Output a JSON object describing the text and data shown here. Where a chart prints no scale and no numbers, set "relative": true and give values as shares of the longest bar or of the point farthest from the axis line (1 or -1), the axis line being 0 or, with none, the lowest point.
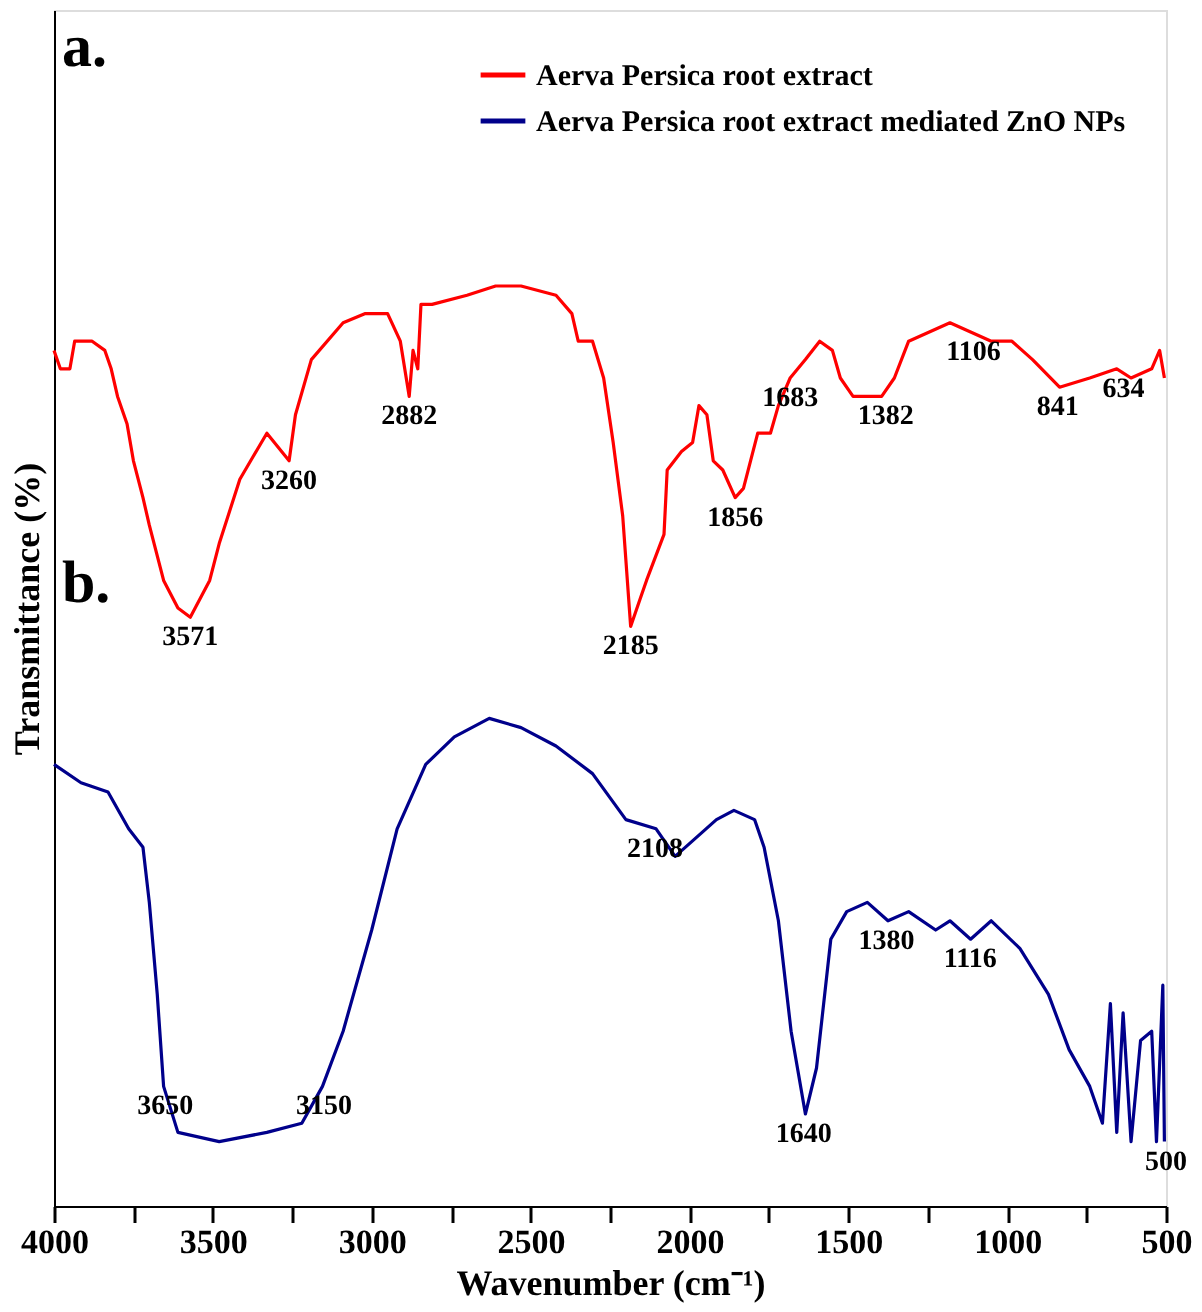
{
  "chart_data": {
    "type": "line",
    "relative": true,
    "xlabel": "Wavenumber (cm⁻¹)",
    "ylabel": "Transmittance (%)",
    "xlim": [
      4000,
      500
    ],
    "xticks": [
      4000,
      {
        "value": 3750,
        "label": null
      },
      3500,
      {
        "value": 3250,
        "label": null
      },
      3000,
      {
        "value": 2750,
        "label": null
      },
      2500,
      {
        "value": 2250,
        "label": null
      },
      2000,
      {
        "value": 1750,
        "label": null
      },
      1500,
      {
        "value": 1250,
        "label": null
      },
      1000,
      {
        "value": 750,
        "label": null
      },
      500
    ],
    "grid": false,
    "legend": "top right",
    "tick_labels": "x",
    "line_style": "solid",
    "marker": "none",
    "series": [
      {
        "name": "Aerva Persica root extract",
        "color": "#ff0000",
        "x": [
          4000,
          3980,
          3950,
          3935,
          3880,
          3840,
          3820,
          3800,
          3770,
          3750,
          3720,
          3700,
          3655,
          3610,
          3571,
          3510,
          3480,
          3415,
          3330,
          3260,
          3240,
          3190,
          3090,
          3020,
          2950,
          2910,
          2882,
          2870,
          2855,
          2845,
          2810,
          2700,
          2610,
          2530,
          2420,
          2370,
          2350,
          2305,
          2270,
          2240,
          2210,
          2185,
          2155,
          2135,
          2080,
          2070,
          2025,
          1990,
          1970,
          1945,
          1925,
          1895,
          1856,
          1830,
          1785,
          1745,
          1720,
          1683,
          1635,
          1590,
          1550,
          1525,
          1485,
          1395,
          1355,
          1310,
          1245,
          1180,
          1115,
          1050,
          985,
          920,
          835,
          740,
          655,
          610,
          545,
          520,
          505
        ],
        "values": [
          0.93,
          0.91,
          0.91,
          0.94,
          0.94,
          0.93,
          0.91,
          0.88,
          0.85,
          0.81,
          0.77,
          0.74,
          0.68,
          0.65,
          0.64,
          0.68,
          0.72,
          0.79,
          0.84,
          0.81,
          0.86,
          0.92,
          0.96,
          0.97,
          0.97,
          0.94,
          0.88,
          0.93,
          0.91,
          0.98,
          0.98,
          0.99,
          1.0,
          1.0,
          0.99,
          0.97,
          0.94,
          0.94,
          0.9,
          0.83,
          0.75,
          0.63,
          0.66,
          0.68,
          0.73,
          0.8,
          0.82,
          0.83,
          0.87,
          0.86,
          0.81,
          0.8,
          0.77,
          0.78,
          0.84,
          0.84,
          0.87,
          0.9,
          0.92,
          0.94,
          0.93,
          0.9,
          0.88,
          0.88,
          0.9,
          0.94,
          0.95,
          0.96,
          0.95,
          0.94,
          0.94,
          0.92,
          0.89,
          0.9,
          0.91,
          0.9,
          0.91,
          0.93,
          0.9
        ]
      },
      {
        "name": "Aerva Persica root extract mediated ZnO NPs",
        "color": "#00008b",
        "x": [
          4000,
          3915,
          3830,
          3765,
          3720,
          3700,
          3675,
          3655,
          3610,
          3480,
          3330,
          3220,
          3155,
          3090,
          3000,
          2920,
          2830,
          2740,
          2630,
          2530,
          2420,
          2305,
          2200,
          2105,
          2045,
          1915,
          1860,
          1795,
          1765,
          1720,
          1680,
          1635,
          1600,
          1555,
          1505,
          1440,
          1375,
          1310,
          1225,
          1180,
          1115,
          1050,
          960,
          870,
          805,
          740,
          700,
          675,
          655,
          635,
          610,
          580,
          545,
          530,
          510,
          505
        ],
        "values": [
          0.48,
          0.46,
          0.45,
          0.41,
          0.39,
          0.33,
          0.23,
          0.13,
          0.08,
          0.07,
          0.08,
          0.09,
          0.13,
          0.19,
          0.3,
          0.41,
          0.48,
          0.51,
          0.53,
          0.52,
          0.5,
          0.47,
          0.42,
          0.41,
          0.38,
          0.42,
          0.43,
          0.42,
          0.39,
          0.31,
          0.19,
          0.1,
          0.15,
          0.29,
          0.32,
          0.33,
          0.31,
          0.32,
          0.3,
          0.31,
          0.29,
          0.31,
          0.28,
          0.23,
          0.17,
          0.13,
          0.09,
          0.22,
          0.08,
          0.21,
          0.07,
          0.18,
          0.19,
          0.07,
          0.24,
          0.07
        ]
      }
    ],
    "annotations": [
      "a.",
      "b.",
      {
        "text": "3571",
        "x": 3571,
        "y": 0.64
      },
      {
        "text": "3260",
        "x": 3260,
        "y": 0.81
      },
      {
        "text": "2882",
        "x": 2882,
        "y": 0.88
      },
      {
        "text": "2185",
        "x": 2185,
        "y": 0.63
      },
      {
        "text": "1856",
        "x": 1856,
        "y": 0.77
      },
      {
        "text": "1683",
        "x": 1683,
        "y": 0.9
      },
      {
        "text": "1382",
        "x": 1382,
        "y": 0.88
      },
      {
        "text": "1106",
        "x": 1106,
        "y": 0.95
      },
      {
        "text": "841",
        "x": 841,
        "y": 0.89
      },
      {
        "text": "634",
        "x": 634,
        "y": 0.91
      },
      {
        "text": "3650",
        "x": 3650,
        "y": 0.13
      },
      {
        "text": "3150",
        "x": 3150,
        "y": 0.13
      },
      {
        "text": "2108",
        "x": 2108,
        "y": 0.41
      },
      {
        "text": "1640",
        "x": 1640,
        "y": 0.1
      },
      {
        "text": "1380",
        "x": 1380,
        "y": 0.31
      },
      {
        "text": "1116",
        "x": 1116,
        "y": 0.29
      },
      {
        "text": "500",
        "x": 500,
        "y": 0.07
      }
    ]
  }
}
